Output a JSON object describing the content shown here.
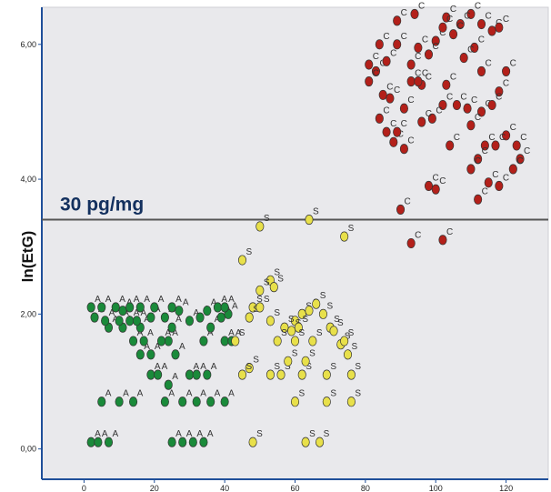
{
  "chart_data": {
    "type": "scatter",
    "ylabel": "ln(EtG)",
    "xlabel": "",
    "xlim": [
      -12,
      132
    ],
    "ylim": [
      -0.45,
      6.55
    ],
    "x_ticks": [
      "0",
      "20",
      "40",
      "60",
      "80",
      "100",
      "120"
    ],
    "y_ticks": [
      "0,00",
      "2,00",
      "4,00",
      "6,00"
    ],
    "grid": false,
    "reference_line": {
      "y": 3.4,
      "label": "30 pg/mg"
    },
    "colors": {
      "A": "#1a8a3a",
      "S": "#e8e04a",
      "C": "#b3201a"
    },
    "series": [
      {
        "name": "A",
        "points": [
          [
            2,
            0.1
          ],
          [
            4,
            0.1
          ],
          [
            7,
            0.1
          ],
          [
            25,
            0.1
          ],
          [
            28,
            0.1
          ],
          [
            31,
            0.1
          ],
          [
            34,
            0.1
          ],
          [
            5,
            0.7
          ],
          [
            10,
            0.7
          ],
          [
            14,
            0.7
          ],
          [
            23,
            0.7
          ],
          [
            28,
            0.7
          ],
          [
            32,
            0.7
          ],
          [
            36,
            0.7
          ],
          [
            40,
            0.7
          ],
          [
            24,
            0.95
          ],
          [
            30,
            1.1
          ],
          [
            32,
            1.1
          ],
          [
            35,
            1.1
          ],
          [
            19,
            1.1
          ],
          [
            21,
            1.1
          ],
          [
            16,
            1.4
          ],
          [
            19,
            1.4
          ],
          [
            26,
            1.4
          ],
          [
            17,
            1.6
          ],
          [
            24,
            1.6
          ],
          [
            22,
            1.6
          ],
          [
            34,
            1.6
          ],
          [
            40,
            1.6
          ],
          [
            42,
            1.6
          ],
          [
            14,
            1.6
          ],
          [
            7,
            1.8
          ],
          [
            11,
            1.8
          ],
          [
            16,
            1.8
          ],
          [
            25,
            1.8
          ],
          [
            36,
            1.8
          ],
          [
            3,
            1.95
          ],
          [
            6,
            1.9
          ],
          [
            10,
            1.9
          ],
          [
            13,
            1.9
          ],
          [
            15,
            1.9
          ],
          [
            19,
            1.95
          ],
          [
            23,
            1.95
          ],
          [
            30,
            1.9
          ],
          [
            33,
            1.95
          ],
          [
            39,
            1.95
          ],
          [
            41,
            2.0
          ],
          [
            2,
            2.1
          ],
          [
            5,
            2.1
          ],
          [
            9,
            2.1
          ],
          [
            11,
            2.05
          ],
          [
            13,
            2.1
          ],
          [
            16,
            2.1
          ],
          [
            20,
            2.1
          ],
          [
            25,
            2.1
          ],
          [
            27,
            2.05
          ],
          [
            35,
            2.05
          ],
          [
            38,
            2.1
          ],
          [
            40,
            2.1
          ]
        ]
      },
      {
        "name": "S",
        "points": [
          [
            50,
            3.3
          ],
          [
            64,
            3.4
          ],
          [
            74,
            3.15
          ],
          [
            45,
            2.8
          ],
          [
            53,
            2.5
          ],
          [
            50,
            2.35
          ],
          [
            48,
            2.1
          ],
          [
            54,
            2.4
          ],
          [
            47,
            1.95
          ],
          [
            50,
            2.1
          ],
          [
            60,
            1.9
          ],
          [
            62,
            2.0
          ],
          [
            64,
            2.05
          ],
          [
            66,
            2.15
          ],
          [
            68,
            2.0
          ],
          [
            70,
            1.8
          ],
          [
            57,
            1.8
          ],
          [
            59,
            1.75
          ],
          [
            61,
            1.8
          ],
          [
            53,
            1.9
          ],
          [
            55,
            1.6
          ],
          [
            60,
            1.6
          ],
          [
            65,
            1.6
          ],
          [
            73,
            1.55
          ],
          [
            71,
            1.75
          ],
          [
            74,
            1.6
          ],
          [
            75,
            1.4
          ],
          [
            43,
            1.6
          ],
          [
            47,
            1.2
          ],
          [
            53,
            1.1
          ],
          [
            56,
            1.1
          ],
          [
            58,
            1.3
          ],
          [
            62,
            1.1
          ],
          [
            63,
            1.3
          ],
          [
            69,
            1.1
          ],
          [
            76,
            1.1
          ],
          [
            45,
            1.1
          ],
          [
            60,
            0.7
          ],
          [
            69,
            0.7
          ],
          [
            76,
            0.7
          ],
          [
            63,
            0.1
          ],
          [
            67,
            0.1
          ],
          [
            48,
            0.1
          ]
        ]
      },
      {
        "name": "C",
        "points": [
          [
            89,
            6.35
          ],
          [
            94,
            6.45
          ],
          [
            103,
            6.4
          ],
          [
            110,
            6.45
          ],
          [
            113,
            6.3
          ],
          [
            116,
            6.2
          ],
          [
            118,
            6.25
          ],
          [
            84,
            6.0
          ],
          [
            89,
            6.0
          ],
          [
            95,
            5.95
          ],
          [
            100,
            6.05
          ],
          [
            102,
            6.25
          ],
          [
            107,
            6.3
          ],
          [
            105,
            6.15
          ],
          [
            111,
            5.95
          ],
          [
            81,
            5.7
          ],
          [
            83,
            5.6
          ],
          [
            86,
            5.75
          ],
          [
            93,
            5.7
          ],
          [
            98,
            5.85
          ],
          [
            108,
            5.8
          ],
          [
            113,
            5.6
          ],
          [
            120,
            5.6
          ],
          [
            81,
            5.45
          ],
          [
            93,
            5.45
          ],
          [
            96,
            5.4
          ],
          [
            95,
            5.45
          ],
          [
            103,
            5.4
          ],
          [
            118,
            5.3
          ],
          [
            85,
            5.25
          ],
          [
            87,
            5.2
          ],
          [
            91,
            5.05
          ],
          [
            102,
            5.1
          ],
          [
            109,
            5.05
          ],
          [
            106,
            5.1
          ],
          [
            113,
            5.0
          ],
          [
            116,
            5.1
          ],
          [
            84,
            4.9
          ],
          [
            86,
            4.7
          ],
          [
            99,
            4.9
          ],
          [
            96,
            4.85
          ],
          [
            110,
            4.8
          ],
          [
            88,
            4.55
          ],
          [
            91,
            4.45
          ],
          [
            89,
            4.7
          ],
          [
            120,
            4.65
          ],
          [
            123,
            4.5
          ],
          [
            114,
            4.5
          ],
          [
            117,
            4.5
          ],
          [
            104,
            4.5
          ],
          [
            112,
            4.3
          ],
          [
            124,
            4.3
          ],
          [
            110,
            4.15
          ],
          [
            122,
            4.15
          ],
          [
            98,
            3.9
          ],
          [
            100,
            3.85
          ],
          [
            115,
            3.95
          ],
          [
            118,
            3.9
          ],
          [
            112,
            3.7
          ],
          [
            90,
            3.55
          ],
          [
            93,
            3.05
          ],
          [
            102,
            3.1
          ]
        ]
      }
    ]
  }
}
